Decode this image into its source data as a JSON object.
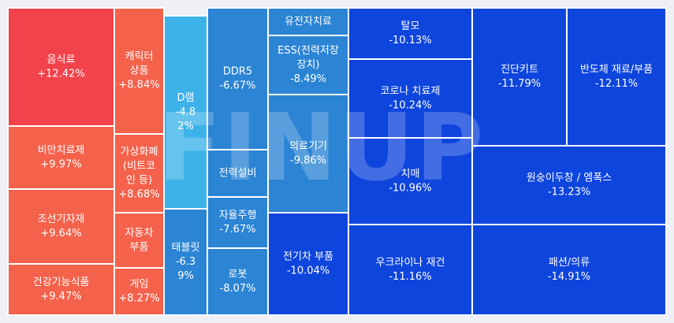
{
  "chart_data": {
    "type": "treemap",
    "watermark": "FINUP",
    "colors": {
      "up_strong": "#f2424b",
      "up": "#f4624b",
      "flat": "#2b84d4",
      "light": "#3cb2e8",
      "down": "#1f5ed9",
      "down_strong": "#0e45dd",
      "border": "#ffffff"
    },
    "tiles": [
      {
        "name": "음식료",
        "lines": [
          "음식료",
          "+12.42%"
        ],
        "value": 12.42
      },
      {
        "name": "비만치료제",
        "lines": [
          "비만치료제",
          "+9.97%"
        ],
        "value": 9.97
      },
      {
        "name": "조선기자재",
        "lines": [
          "조선기자재",
          "+9.64%"
        ],
        "value": 9.64
      },
      {
        "name": "건강기능식품",
        "lines": [
          "건강기능식품",
          "+9.47%"
        ],
        "value": 9.47
      },
      {
        "name": "캐릭터 상품",
        "lines": [
          "캐릭터",
          "상품",
          "+8.84%"
        ],
        "value": 8.84
      },
      {
        "name": "가상화폐(비트코인 등)",
        "lines": [
          "가상화폐",
          "(비트코",
          "인 등)",
          "+8.68%"
        ],
        "value": 8.68
      },
      {
        "name": "자동차 부품",
        "lines": [
          "자동차",
          "부품"
        ],
        "value": null
      },
      {
        "name": "게임",
        "lines": [
          "게임",
          "+8.27%"
        ],
        "value": 8.27
      },
      {
        "name": "D램",
        "lines": [
          "D램",
          "-4.8",
          "2%"
        ],
        "value": -4.82
      },
      {
        "name": "태블릿",
        "lines": [
          "태블릿",
          "-6.3",
          "9%"
        ],
        "value": -6.39
      },
      {
        "name": "DDR5",
        "lines": [
          "DDR5",
          "-6.67%"
        ],
        "value": -6.67
      },
      {
        "name": "전력설비",
        "lines": [
          "전력설비"
        ],
        "value": null
      },
      {
        "name": "자율주행",
        "lines": [
          "자율주행",
          "-7.67%"
        ],
        "value": -7.67
      },
      {
        "name": "로봇",
        "lines": [
          "로봇",
          "-8.07%"
        ],
        "value": -8.07
      },
      {
        "name": "유전자치료",
        "lines": [
          "유전자치료"
        ],
        "value": null
      },
      {
        "name": "ESS(전력저장장치)",
        "lines": [
          "ESS(전력저장",
          "장치)",
          "-8.49%"
        ],
        "value": -8.49
      },
      {
        "name": "의료기기",
        "lines": [
          "의료기기",
          "-9.86%"
        ],
        "value": -9.86
      },
      {
        "name": "전기차 부품",
        "lines": [
          "전기차 부품",
          "-10.04%"
        ],
        "value": -10.04
      },
      {
        "name": "탈모",
        "lines": [
          "탈모",
          "-10.13%"
        ],
        "value": -10.13
      },
      {
        "name": "코로나 치료제",
        "lines": [
          "코로나 치료제",
          "-10.24%"
        ],
        "value": -10.24
      },
      {
        "name": "치매",
        "lines": [
          "치매",
          "-10.96%"
        ],
        "value": -10.96
      },
      {
        "name": "우크라이나 재건",
        "lines": [
          "우크라이나 재건",
          "-11.16%"
        ],
        "value": -11.16
      },
      {
        "name": "진단키트",
        "lines": [
          "진단키트",
          "-11.79%"
        ],
        "value": -11.79
      },
      {
        "name": "반도체 재료/부품",
        "lines": [
          "반도체 재료/부품",
          "-12.11%"
        ],
        "value": -12.11
      },
      {
        "name": "원숭이두창 / 엠폭스",
        "lines": [
          "원숭이두창 / 엠폭스",
          "-13.23%"
        ],
        "value": -13.23
      },
      {
        "name": "패션/의류",
        "lines": [
          "패션/의류",
          "-14.91%"
        ],
        "value": -14.91
      }
    ]
  }
}
